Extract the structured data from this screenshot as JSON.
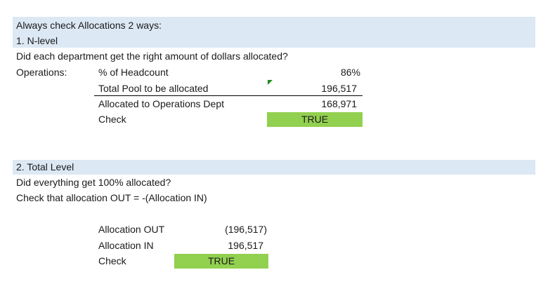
{
  "section1": {
    "intro": "Always check Allocations 2 ways:",
    "heading": "1. N-level",
    "question": "Did each department get the right amount of dollars allocated?",
    "dept_label": "Operations:",
    "rows": [
      {
        "label": "% of Headcount",
        "value": "86%"
      },
      {
        "label": "Total Pool to be allocated",
        "value": "196,517"
      },
      {
        "label": "Allocated to Operations Dept",
        "value": "168,971"
      },
      {
        "label": "Check",
        "value": "TRUE"
      }
    ]
  },
  "section2": {
    "heading": "2. Total Level",
    "question": "Did everything get 100% allocated?",
    "instruction": "Check that allocation OUT = -(Allocation IN)",
    "rows": [
      {
        "label": "Allocation OUT",
        "value": "(196,517)"
      },
      {
        "label": "Allocation IN",
        "value": "196,517"
      },
      {
        "label": "Check",
        "value": "TRUE"
      }
    ]
  },
  "colors": {
    "header_band": "#dce8f4",
    "check_fill": "#92d050",
    "error_indicator": "#1e8a1e"
  }
}
